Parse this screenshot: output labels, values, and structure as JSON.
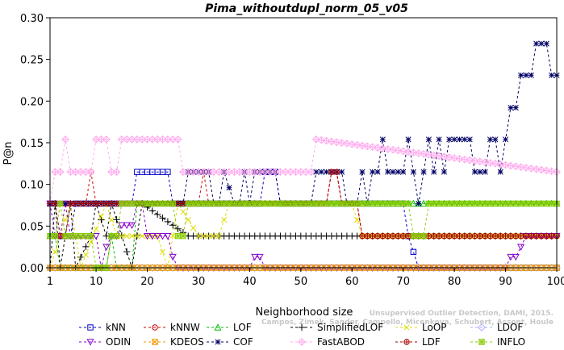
{
  "chart_data": {
    "type": "line",
    "title": "Pima_withoutdupl_norm_05_v05",
    "xlabel": "Neighborhood size",
    "ylabel": "P@n",
    "xlim": [
      1,
      100
    ],
    "ylim": [
      0,
      0.3
    ],
    "xticks": [
      1,
      10,
      20,
      30,
      40,
      50,
      60,
      70,
      80,
      90,
      100
    ],
    "yticks": [
      0.0,
      0.05,
      0.1,
      0.15,
      0.2,
      0.25,
      0.3
    ],
    "ytick_labels": [
      "0.00",
      "0.05",
      "0.10",
      "0.15",
      "0.20",
      "0.25",
      "0.30"
    ],
    "grid": false,
    "legend_position": "bottom",
    "watermark_lines": [
      "Unsupervised Outlier Detection, DAMI, 2015.",
      "Campos, Zimek, Sander, Campello, Micenkova, Schubert, Assent, Houle"
    ],
    "series": [
      {
        "name": "kNN",
        "color": "#0000cc",
        "marker": "square",
        "segments": [
          [
            1,
            0.077
          ],
          [
            2,
            0.077
          ],
          [
            3,
            0.038
          ],
          [
            5,
            0.038
          ],
          [
            6,
            0.077
          ],
          [
            17,
            0.077
          ],
          [
            18,
            0.115
          ],
          [
            24,
            0.115
          ],
          [
            25,
            0.077
          ],
          [
            42,
            0.077
          ],
          [
            43,
            0.115
          ],
          [
            45,
            0.115
          ],
          [
            46,
            0.077
          ],
          [
            70,
            0.077
          ],
          [
            71,
            0.038
          ],
          [
            73,
            0.0
          ],
          [
            100,
            0.0
          ]
        ]
      },
      {
        "name": "kNNW",
        "color": "#cc0000",
        "marker": "circle",
        "segments": [
          [
            1,
            0.077
          ],
          [
            8,
            0.077
          ],
          [
            9,
            0.115
          ],
          [
            10,
            0.077
          ],
          [
            24,
            0.077
          ],
          [
            25,
            0.077
          ],
          [
            30,
            0.077
          ],
          [
            31,
            0.115
          ],
          [
            32,
            0.077
          ],
          [
            55,
            0.077
          ],
          [
            56,
            0.115
          ],
          [
            57,
            0.115
          ],
          [
            58,
            0.077
          ],
          [
            61,
            0.077
          ],
          [
            62,
            0.038
          ],
          [
            71,
            0.038
          ],
          [
            72,
            0.038
          ],
          [
            100,
            0.038
          ]
        ]
      },
      {
        "name": "LOF",
        "color": "#00bb00",
        "marker": "triangle",
        "segments": [
          [
            1,
            0.038
          ],
          [
            2,
            0.038
          ],
          [
            3,
            0.0
          ],
          [
            12,
            0.0
          ],
          [
            13,
            0.038
          ],
          [
            14,
            0.0
          ],
          [
            17,
            0.0
          ],
          [
            18,
            0.077
          ],
          [
            100,
            0.077
          ]
        ]
      },
      {
        "name": "SimplifiedLOF",
        "color": "#000000",
        "marker": "plus",
        "segments": [
          [
            1,
            0.0
          ],
          [
            2,
            0.077
          ],
          [
            3,
            0.0
          ],
          [
            5,
            0.077
          ],
          [
            6,
            0.0
          ],
          [
            9,
            0.038
          ],
          [
            10,
            0.077
          ],
          [
            12,
            0.038
          ],
          [
            13,
            0.077
          ],
          [
            17,
            0.0
          ],
          [
            19,
            0.077
          ],
          [
            28,
            0.038
          ],
          [
            100,
            0.038
          ]
        ]
      },
      {
        "name": "LoOP",
        "color": "#dddd00",
        "marker": "x",
        "segments": [
          [
            1,
            0.0
          ],
          [
            5,
            0.077
          ],
          [
            7,
            0.0
          ],
          [
            12,
            0.077
          ],
          [
            14,
            0.038
          ],
          [
            22,
            0.038
          ],
          [
            24,
            0.0
          ],
          [
            26,
            0.077
          ],
          [
            30,
            0.038
          ],
          [
            34,
            0.038
          ],
          [
            36,
            0.077
          ],
          [
            60,
            0.077
          ],
          [
            62,
            0.038
          ],
          [
            100,
            0.038
          ]
        ]
      },
      {
        "name": "LDOF",
        "color": "#aaaaff",
        "marker": "diamond",
        "segments": [
          [
            1,
            0.0
          ],
          [
            100,
            0.0
          ]
        ]
      },
      {
        "name": "ODIN",
        "color": "#8800cc",
        "marker": "triangle-down",
        "segments": [
          [
            1,
            0.077
          ],
          [
            2,
            0.038
          ],
          [
            3,
            0.038
          ],
          [
            4,
            0.077
          ],
          [
            5,
            0.038
          ],
          [
            6,
            0.038
          ],
          [
            7,
            0.038
          ],
          [
            8,
            0.038
          ],
          [
            9,
            0.038
          ],
          [
            10,
            0.038
          ],
          [
            11,
            0.0
          ],
          [
            12,
            0.025
          ],
          [
            13,
            0.038
          ],
          [
            14,
            0.038
          ],
          [
            15,
            0.051
          ],
          [
            16,
            0.051
          ],
          [
            17,
            0.051
          ],
          [
            18,
            0.077
          ],
          [
            19,
            0.077
          ],
          [
            20,
            0.038
          ],
          [
            21,
            0.038
          ],
          [
            22,
            0.038
          ],
          [
            23,
            0.038
          ],
          [
            24,
            0.038
          ],
          [
            25,
            0.013
          ],
          [
            26,
            0.0
          ],
          [
            27,
            0.0
          ],
          [
            28,
            0.0
          ],
          [
            40,
            0.0
          ],
          [
            41,
            0.013
          ],
          [
            42,
            0.013
          ],
          [
            43,
            0.0
          ],
          [
            55,
            0.0
          ],
          [
            56,
            0.0
          ],
          [
            90,
            0.0
          ],
          [
            91,
            0.013
          ],
          [
            92,
            0.013
          ],
          [
            93,
            0.025
          ],
          [
            94,
            0.038
          ],
          [
            100,
            0.038
          ]
        ]
      },
      {
        "name": "KDEOS",
        "color": "#ee9900",
        "marker": "square-x",
        "segments": [
          [
            1,
            0.0
          ],
          [
            100,
            0.0
          ]
        ]
      },
      {
        "name": "COF",
        "color": "#000066",
        "marker": "asterisk",
        "segments": [
          [
            1,
            0.077
          ],
          [
            27,
            0.077
          ],
          [
            28,
            0.115
          ],
          [
            32,
            0.115
          ],
          [
            33,
            0.077
          ],
          [
            34,
            0.077
          ],
          [
            35,
            0.115
          ],
          [
            37,
            0.077
          ],
          [
            38,
            0.077
          ],
          [
            39,
            0.115
          ],
          [
            40,
            0.077
          ],
          [
            41,
            0.115
          ],
          [
            45,
            0.115
          ],
          [
            46,
            0.077
          ],
          [
            52,
            0.077
          ],
          [
            53,
            0.115
          ],
          [
            58,
            0.115
          ],
          [
            59,
            0.077
          ],
          [
            61,
            0.077
          ],
          [
            62,
            0.115
          ],
          [
            63,
            0.077
          ],
          [
            64,
            0.115
          ],
          [
            65,
            0.115
          ],
          [
            66,
            0.154
          ],
          [
            67,
            0.115
          ],
          [
            70,
            0.115
          ],
          [
            71,
            0.154
          ],
          [
            72,
            0.115
          ],
          [
            73,
            0.077
          ],
          [
            74,
            0.115
          ],
          [
            75,
            0.154
          ],
          [
            76,
            0.115
          ],
          [
            77,
            0.154
          ],
          [
            78,
            0.115
          ],
          [
            79,
            0.154
          ],
          [
            83,
            0.154
          ],
          [
            84,
            0.115
          ],
          [
            86,
            0.115
          ],
          [
            87,
            0.154
          ],
          [
            88,
            0.154
          ],
          [
            89,
            0.115
          ],
          [
            90,
            0.154
          ],
          [
            91,
            0.192
          ],
          [
            92,
            0.192
          ],
          [
            93,
            0.231
          ],
          [
            95,
            0.231
          ],
          [
            96,
            0.269
          ],
          [
            98,
            0.269
          ],
          [
            99,
            0.231
          ],
          [
            100,
            0.231
          ]
        ]
      },
      {
        "name": "FastABOD",
        "color": "#ffaaee",
        "marker": "diamond-plus",
        "segments": [
          [
            1,
            0.077
          ],
          [
            2,
            0.115
          ],
          [
            3,
            0.115
          ],
          [
            4,
            0.154
          ],
          [
            5,
            0.115
          ],
          [
            9,
            0.115
          ],
          [
            10,
            0.154
          ],
          [
            12,
            0.154
          ],
          [
            13,
            0.115
          ],
          [
            14,
            0.115
          ],
          [
            15,
            0.154
          ],
          [
            26,
            0.154
          ],
          [
            27,
            0.115
          ],
          [
            52,
            0.115
          ],
          [
            53,
            0.154
          ],
          [
            100,
            0.115
          ]
        ]
      },
      {
        "name": "LDF",
        "color": "#aa0000",
        "marker": "circle-plus",
        "segments": [
          [
            1,
            0.077
          ],
          [
            2,
            0.077
          ],
          [
            3,
            0.038
          ],
          [
            4,
            0.038
          ],
          [
            5,
            0.077
          ],
          [
            9,
            0.077
          ],
          [
            10,
            0.077
          ],
          [
            55,
            0.077
          ],
          [
            56,
            0.115
          ],
          [
            57,
            0.115
          ],
          [
            58,
            0.077
          ],
          [
            61,
            0.077
          ],
          [
            62,
            0.038
          ],
          [
            71,
            0.038
          ],
          [
            72,
            0.038
          ],
          [
            100,
            0.038
          ]
        ]
      },
      {
        "name": "INFLO",
        "color": "#88cc00",
        "marker": "square-cross",
        "segments": [
          [
            1,
            0.038
          ],
          [
            2,
            0.038
          ],
          [
            3,
            0.077
          ],
          [
            4,
            0.038
          ],
          [
            5,
            0.038
          ],
          [
            6,
            0.038
          ],
          [
            7,
            0.038
          ],
          [
            8,
            0.038
          ],
          [
            9,
            0.038
          ],
          [
            10,
            0.0
          ],
          [
            12,
            0.0
          ],
          [
            13,
            0.038
          ],
          [
            14,
            0.038
          ],
          [
            15,
            0.077
          ],
          [
            16,
            0.077
          ],
          [
            17,
            0.077
          ],
          [
            18,
            0.077
          ],
          [
            25,
            0.077
          ],
          [
            26,
            0.038
          ],
          [
            27,
            0.038
          ],
          [
            28,
            0.077
          ],
          [
            70,
            0.077
          ],
          [
            71,
            0.077
          ],
          [
            72,
            0.038
          ],
          [
            74,
            0.038
          ],
          [
            75,
            0.077
          ],
          [
            100,
            0.077
          ]
        ]
      }
    ]
  }
}
